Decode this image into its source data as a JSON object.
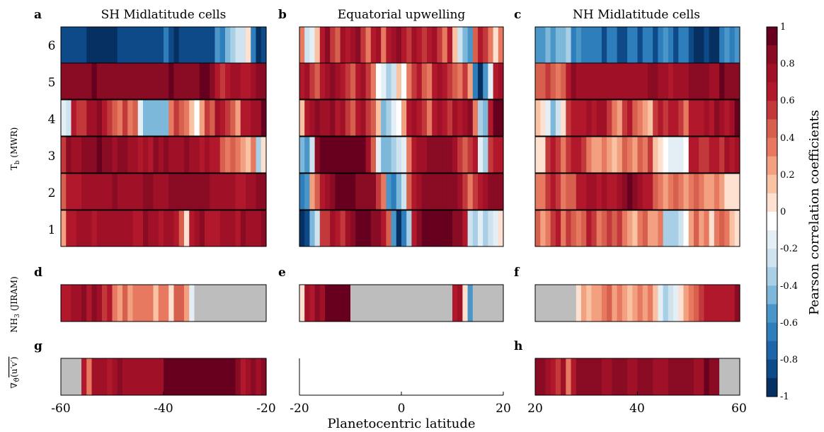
{
  "chart_data": {
    "type": "heatmap",
    "panels": {
      "a": {
        "letter": "a",
        "title": "SH Midlatitude cells",
        "x_range": [
          -60,
          -20
        ],
        "rows": [
          [
            0.2,
            0.6,
            0.6,
            0.7,
            0.7,
            0.7,
            0.6,
            0.7,
            0.7,
            0.7,
            0.7,
            0.7,
            0.7,
            0.7,
            0.6,
            0.6,
            0.8,
            0.7,
            0.7,
            0.6,
            0.7,
            0.7,
            0.6,
            0.4,
            0.0,
            0.6,
            0.7,
            0.8,
            0.6,
            0.6,
            0.6,
            0.7,
            0.7,
            0.7,
            0.6,
            0.8,
            0.7,
            0.7,
            0.7,
            0.8
          ],
          [
            0.4,
            0.6,
            0.6,
            0.6,
            0.7,
            0.7,
            0.7,
            0.7,
            0.7,
            0.7,
            0.8,
            0.7,
            0.7,
            0.7,
            0.7,
            0.7,
            0.8,
            0.8,
            0.7,
            0.7,
            0.7,
            0.8,
            0.8,
            0.8,
            0.8,
            0.8,
            0.8,
            0.8,
            0.8,
            0.7,
            0.7,
            0.7,
            0.7,
            0.7,
            0.6,
            0.6,
            0.7,
            0.7,
            0.8,
            0.8
          ],
          [
            0.5,
            0.8,
            0.7,
            0.7,
            0.8,
            0.8,
            0.8,
            0.9,
            0.8,
            0.8,
            0.7,
            0.8,
            0.8,
            0.7,
            0.7,
            0.6,
            0.7,
            0.6,
            0.8,
            0.7,
            0.8,
            0.7,
            0.7,
            0.7,
            0.8,
            0.7,
            0.7,
            0.6,
            0.7,
            0.6,
            0.6,
            0.4,
            0.3,
            0.4,
            0.3,
            0.2,
            0.1,
            0.3,
            -0.4,
            0.0
          ],
          [
            -0.2,
            -0.3,
            0.6,
            0.5,
            0.5,
            0.7,
            0.7,
            0.8,
            0.6,
            0.5,
            0.4,
            0.3,
            0.5,
            0.3,
            0.4,
            -0.2,
            -0.5,
            -0.5,
            -0.5,
            -0.5,
            -0.5,
            0.3,
            0.5,
            0.4,
            0.3,
            0.1,
            -0.1,
            0.2,
            0.5,
            0.4,
            0.7,
            0.6,
            0.5,
            0.4,
            0.2,
            0.6,
            0.6,
            0.7,
            0.7,
            0.9
          ],
          [
            0.8,
            0.8,
            0.8,
            0.8,
            0.8,
            0.8,
            0.9,
            0.8,
            0.8,
            0.8,
            0.8,
            0.8,
            0.8,
            0.8,
            0.8,
            0.8,
            0.8,
            0.8,
            0.8,
            0.8,
            0.8,
            0.9,
            0.8,
            0.8,
            0.8,
            0.8,
            0.8,
            0.9,
            0.9,
            0.8,
            0.6,
            0.5,
            0.6,
            0.7,
            0.7,
            0.6,
            0.6,
            0.7,
            0.8,
            0.8
          ],
          [
            -0.8,
            -0.8,
            -0.8,
            -0.8,
            -0.8,
            -0.9,
            -0.9,
            -0.9,
            -0.9,
            -0.9,
            -0.9,
            -0.8,
            -0.8,
            -0.8,
            -0.8,
            -0.8,
            -0.8,
            -0.8,
            -0.8,
            -0.8,
            -0.7,
            -0.8,
            -0.9,
            -0.8,
            -0.8,
            -0.8,
            -0.8,
            -0.8,
            -0.8,
            -0.8,
            -0.6,
            -0.7,
            -0.5,
            -0.4,
            -0.3,
            -0.3,
            0.0,
            -0.7,
            -0.9,
            -0.8
          ]
        ]
      },
      "b": {
        "letter": "b",
        "title": "Equatorial upwelling",
        "x_range": [
          -20,
          20
        ],
        "rows": [
          [
            -0.9,
            -0.8,
            -0.5,
            -0.3,
            0.5,
            0.5,
            0.7,
            0.6,
            0.5,
            0.7,
            0.8,
            0.9,
            0.9,
            0.9,
            0.8,
            0.8,
            0.6,
            0.4,
            -0.6,
            -0.9,
            -0.7,
            -0.4,
            0.6,
            0.8,
            0.9,
            0.9,
            0.9,
            0.9,
            0.9,
            0.9,
            0.8,
            0.8,
            0.6,
            -0.3,
            -0.4,
            -0.2,
            -0.4,
            -0.3,
            -0.2,
            0.0
          ],
          [
            -0.7,
            -0.6,
            0.2,
            0.4,
            0.6,
            0.7,
            0.8,
            0.9,
            0.9,
            0.9,
            0.9,
            0.8,
            0.8,
            0.8,
            0.8,
            0.5,
            0.3,
            -0.6,
            -0.7,
            -0.5,
            -0.3,
            0.4,
            0.6,
            0.7,
            0.8,
            0.8,
            0.8,
            0.8,
            0.8,
            0.8,
            0.8,
            0.7,
            0.5,
            0.3,
            0.5,
            0.6,
            0.7,
            0.8,
            0.8,
            0.8
          ],
          [
            -0.5,
            -0.6,
            -0.3,
            0.8,
            0.9,
            0.9,
            0.9,
            0.9,
            0.9,
            0.9,
            0.9,
            0.9,
            0.9,
            0.7,
            0.4,
            -0.2,
            -0.5,
            -0.5,
            -0.4,
            -0.3,
            -0.2,
            0.3,
            0.6,
            0.7,
            0.7,
            0.8,
            0.8,
            0.8,
            0.8,
            0.8,
            0.7,
            0.5,
            0.4,
            0.5,
            0.6,
            -0.2,
            -0.4,
            0.5,
            0.6,
            0.6
          ],
          [
            0.1,
            0.6,
            0.7,
            0.8,
            0.7,
            0.7,
            0.8,
            0.6,
            0.7,
            0.5,
            0.4,
            0.6,
            0.7,
            0.5,
            0.4,
            0.1,
            -0.5,
            -0.4,
            -0.2,
            -0.1,
            0.2,
            0.6,
            0.7,
            0.6,
            0.5,
            0.3,
            0.6,
            0.7,
            0.6,
            0.5,
            0.7,
            0.6,
            0.7,
            0.8,
            0.3,
            -0.4,
            -0.5,
            0.6,
            0.9,
            0.9
          ],
          [
            0.6,
            0.7,
            0.5,
            0.4,
            0.6,
            0.7,
            0.8,
            0.7,
            0.6,
            0.5,
            0.4,
            0.6,
            0.7,
            0.5,
            0.3,
            -0.1,
            -0.2,
            -0.4,
            -0.3,
            0.1,
            -0.1,
            0.3,
            0.5,
            0.6,
            0.4,
            0.3,
            0.6,
            0.7,
            0.6,
            0.5,
            0.4,
            0.3,
            0.5,
            0.2,
            -0.7,
            -0.9,
            -0.6,
            -0.2,
            0.6,
            0.7
          ],
          [
            0.3,
            -0.3,
            -0.2,
            0.1,
            0.6,
            0.8,
            0.5,
            0.4,
            0.7,
            0.6,
            0.7,
            0.8,
            0.5,
            0.3,
            0.6,
            0.7,
            0.3,
            0.6,
            0.7,
            0.8,
            0.6,
            0.5,
            0.7,
            0.6,
            0.5,
            0.6,
            0.7,
            0.5,
            0.3,
            0.6,
            0.1,
            -0.3,
            -0.5,
            -0.6,
            0.4,
            0.6,
            0.5,
            0.3,
            0.0,
            0.3
          ]
        ]
      },
      "c": {
        "letter": "c",
        "title": "NH Midlatitude cells",
        "x_range": [
          20,
          60
        ],
        "rows": [
          [
            0.4,
            0.2,
            0.3,
            0.5,
            0.6,
            0.3,
            0.5,
            0.4,
            0.3,
            0.4,
            0.6,
            0.5,
            0.3,
            0.4,
            0.5,
            0.4,
            0.5,
            0.3,
            0.2,
            0.1,
            0.3,
            0.4,
            0.2,
            0.2,
            0.3,
            -0.4,
            -0.4,
            -0.4,
            -0.3,
            -0.1,
            0.2,
            0.4,
            0.2,
            0.3,
            0.0,
            0.3,
            0.4,
            0.3,
            0.1,
            0.0
          ],
          [
            0.3,
            0.3,
            0.5,
            0.6,
            0.5,
            0.3,
            0.4,
            0.4,
            0.6,
            0.6,
            0.7,
            0.7,
            0.6,
            0.7,
            0.6,
            0.6,
            0.7,
            0.8,
            0.9,
            0.8,
            0.7,
            0.6,
            0.6,
            0.4,
            0.3,
            0.2,
            0.3,
            0.4,
            0.3,
            0.2,
            0.3,
            0.4,
            0.3,
            0.2,
            0.2,
            0.3,
            0.2,
            0.0,
            0.0,
            0.0
          ],
          [
            0.0,
            0.0,
            0.5,
            0.6,
            0.5,
            0.3,
            0.5,
            0.6,
            0.6,
            0.5,
            0.3,
            0.2,
            0.2,
            0.3,
            0.2,
            0.1,
            0.2,
            0.4,
            0.3,
            0.2,
            0.4,
            0.3,
            0.5,
            0.1,
            0.0,
            -0.1,
            -0.2,
            -0.2,
            -0.2,
            -0.1,
            0.6,
            0.6,
            0.5,
            0.5,
            0.6,
            0.6,
            0.5,
            0.7,
            0.6,
            0.7
          ],
          [
            0.1,
            0.0,
            -0.2,
            -0.5,
            -0.3,
            0.0,
            0.5,
            0.6,
            0.6,
            0.6,
            0.7,
            0.6,
            0.7,
            0.7,
            0.5,
            0.3,
            0.2,
            0.5,
            0.6,
            0.4,
            0.3,
            0.2,
            0.1,
            0.5,
            0.6,
            0.5,
            0.6,
            0.6,
            0.5,
            0.3,
            0.6,
            0.6,
            0.6,
            0.7,
            0.6,
            0.8,
            0.7,
            0.6,
            0.7,
            0.9
          ],
          [
            0.4,
            0.4,
            0.5,
            0.4,
            0.3,
            0.4,
            0.6,
            0.8,
            0.7,
            0.7,
            0.7,
            0.7,
            0.7,
            0.7,
            0.7,
            0.7,
            0.7,
            0.7,
            0.7,
            0.7,
            0.7,
            0.7,
            0.8,
            0.8,
            0.7,
            0.7,
            0.6,
            0.7,
            0.7,
            0.7,
            0.8,
            0.8,
            0.8,
            0.8,
            0.7,
            0.7,
            0.9,
            0.8,
            0.8,
            0.8
          ],
          [
            -0.6,
            -0.6,
            -0.5,
            -0.6,
            -0.5,
            -0.5,
            -0.4,
            -0.7,
            -0.6,
            -0.7,
            -0.7,
            -0.7,
            -0.7,
            -0.8,
            -0.7,
            -0.7,
            -0.8,
            -0.8,
            -0.7,
            -0.7,
            -0.8,
            -0.7,
            -0.7,
            -0.8,
            -0.7,
            -0.6,
            -0.7,
            -0.8,
            -0.7,
            -0.7,
            -0.8,
            -0.9,
            -0.9,
            -0.8,
            -0.9,
            -0.9,
            -0.7,
            -0.6,
            -0.7,
            -0.6
          ]
        ]
      },
      "d": {
        "letter": "d",
        "x_range": [
          -60,
          -20
        ],
        "values": [
          0.6,
          0.6,
          0.7,
          0.7,
          0.8,
          0.6,
          0.8,
          0.7,
          0.5,
          0.6,
          0.3,
          0.2,
          0.4,
          0.2,
          0.3,
          0.3,
          0.3,
          0.3,
          0.1,
          0.3,
          0.3,
          0.0,
          0.4,
          0.4,
          0.2,
          -0.2,
          null,
          null,
          null,
          null,
          null,
          null,
          null,
          null,
          null,
          null,
          null,
          null,
          null,
          null
        ]
      },
      "e": {
        "letter": "e",
        "x_range": [
          -20,
          20
        ],
        "values": [
          0.0,
          0.7,
          0.6,
          0.8,
          0.7,
          0.9,
          0.9,
          0.9,
          0.9,
          0.9,
          null,
          null,
          null,
          null,
          null,
          null,
          null,
          null,
          null,
          null,
          null,
          null,
          null,
          null,
          null,
          null,
          null,
          null,
          null,
          null,
          0.6,
          0.7,
          0.0,
          -0.6,
          null,
          null,
          null,
          null,
          null,
          null
        ]
      },
      "f": {
        "letter": "f",
        "x_range": [
          20,
          60
        ],
        "values": [
          null,
          null,
          null,
          null,
          null,
          null,
          null,
          null,
          0.0,
          0.2,
          0.1,
          0.2,
          0.2,
          0.3,
          0.4,
          0.2,
          0.3,
          0.2,
          0.1,
          0.2,
          0.3,
          0.2,
          0.3,
          0.1,
          -0.2,
          -0.4,
          -0.3,
          -0.2,
          0.0,
          0.2,
          0.3,
          0.4,
          0.5,
          0.6,
          0.6,
          0.6,
          0.6,
          0.6,
          0.6,
          0.8
        ]
      },
      "g": {
        "letter": "g",
        "x_range": [
          -60,
          -20
        ],
        "values": [
          null,
          null,
          null,
          null,
          0.6,
          0.3,
          0.7,
          0.7,
          0.7,
          0.6,
          0.7,
          0.8,
          0.7,
          0.7,
          0.7,
          0.7,
          0.7,
          0.7,
          0.7,
          0.7,
          0.9,
          0.9,
          0.9,
          0.9,
          0.9,
          0.9,
          0.9,
          0.9,
          0.9,
          0.9,
          0.9,
          0.9,
          0.9,
          0.9,
          0.8,
          0.6,
          0.7,
          0.8,
          0.7,
          0.8
        ]
      },
      "h": {
        "letter": "h",
        "x_range": [
          20,
          60
        ],
        "values": [
          0.8,
          0.8,
          0.7,
          0.6,
          0.5,
          0.7,
          0.3,
          0.6,
          0.8,
          0.8,
          0.8,
          0.8,
          0.8,
          0.7,
          0.7,
          0.8,
          0.8,
          0.8,
          0.7,
          0.7,
          0.8,
          0.8,
          0.8,
          0.7,
          0.7,
          0.7,
          0.8,
          0.8,
          0.8,
          0.8,
          0.8,
          0.7,
          0.7,
          0.9,
          0.8,
          0.8,
          null,
          null,
          null,
          null
        ]
      }
    },
    "y_ticks": [
      "1",
      "2",
      "3",
      "4",
      "5",
      "6"
    ],
    "x_ticks": {
      "left": [
        "-60",
        "-40",
        "-20"
      ],
      "middle": [
        "-20",
        "0",
        "20"
      ],
      "right": [
        "20",
        "40",
        "60"
      ]
    },
    "xlabel": "Planetocentric latitude",
    "ylabel_top": "Tₕ (MWR)",
    "ylabel_top_main": "T",
    "ylabel_top_sub": "b",
    "ylabel_top_rest": " (MWR)",
    "ylabel_mid_main": "NH",
    "ylabel_mid_sub": "3",
    "ylabel_mid_rest": " (JIRAM)",
    "ylabel_bottom": "∇ϑ(u′v′)",
    "ylabel_bottom_prefix": "∇",
    "ylabel_bottom_sub": "ϑ",
    "ylabel_bottom_body": "(u′v′)",
    "colorbar": {
      "label": "Pearson correlation coefficients",
      "ticks": [
        "1",
        "0.8",
        "0.6",
        "0.4",
        "0.2",
        "0",
        "-0.2",
        "-0.4",
        "-0.6",
        "-0.8",
        "-1"
      ],
      "range": [
        -1,
        1
      ],
      "colors": [
        "#053061",
        "#0d4a87",
        "#1f65a9",
        "#2e7ebc",
        "#4a96c9",
        "#7db8da",
        "#a8cfe5",
        "#cfe3ef",
        "#e3eef5",
        "#ffffff",
        "#fde0cf",
        "#f8c2a3",
        "#f2a07f",
        "#e6795f",
        "#d6604d",
        "#c3393b",
        "#b2182b",
        "#a01027",
        "#8a0b24",
        "#67001f"
      ]
    },
    "missing_color": "#bdbdbd"
  }
}
